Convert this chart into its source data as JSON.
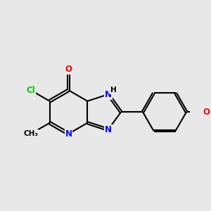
{
  "background_color": "#e8e8e8",
  "atom_colors": {
    "C": "#000000",
    "N": "#0000ff",
    "O": "#ff0000",
    "Cl": "#00cc00",
    "H": "#000000"
  },
  "bond_color": "#000000",
  "bond_width": 1.5,
  "fig_width": 3.0,
  "fig_height": 3.0,
  "dpi": 100,
  "xlim": [
    -1.0,
    6.5
  ],
  "ylim": [
    -1.5,
    4.0
  ]
}
